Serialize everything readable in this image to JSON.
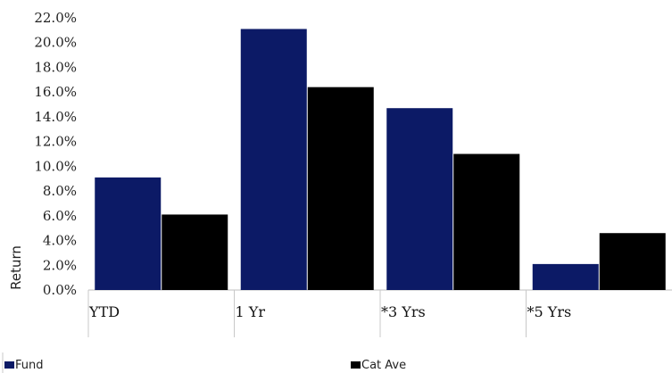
{
  "chart_data": {
    "type": "bar",
    "categories": [
      "YTD",
      "1 Yr",
      "*3 Yrs",
      "*5 Yrs"
    ],
    "series": [
      {
        "name": "Fund",
        "values": [
          9.1,
          21.1,
          14.7,
          2.1
        ],
        "color": "#0c1a66"
      },
      {
        "name": "Cat Ave",
        "values": [
          6.1,
          16.4,
          11.0,
          4.6
        ],
        "color": "#000000"
      }
    ],
    "y_ticks": [
      "0.0%",
      "2.0%",
      "4.0%",
      "6.0%",
      "8.0%",
      "10.0%",
      "12.0%",
      "14.0%",
      "16.0%",
      "18.0%",
      "20.0%",
      "22.0%"
    ],
    "ylim": [
      0,
      22
    ],
    "ylabel": "Return",
    "xlabel": "",
    "title": "",
    "grid": false,
    "legend_position": "bottom"
  }
}
